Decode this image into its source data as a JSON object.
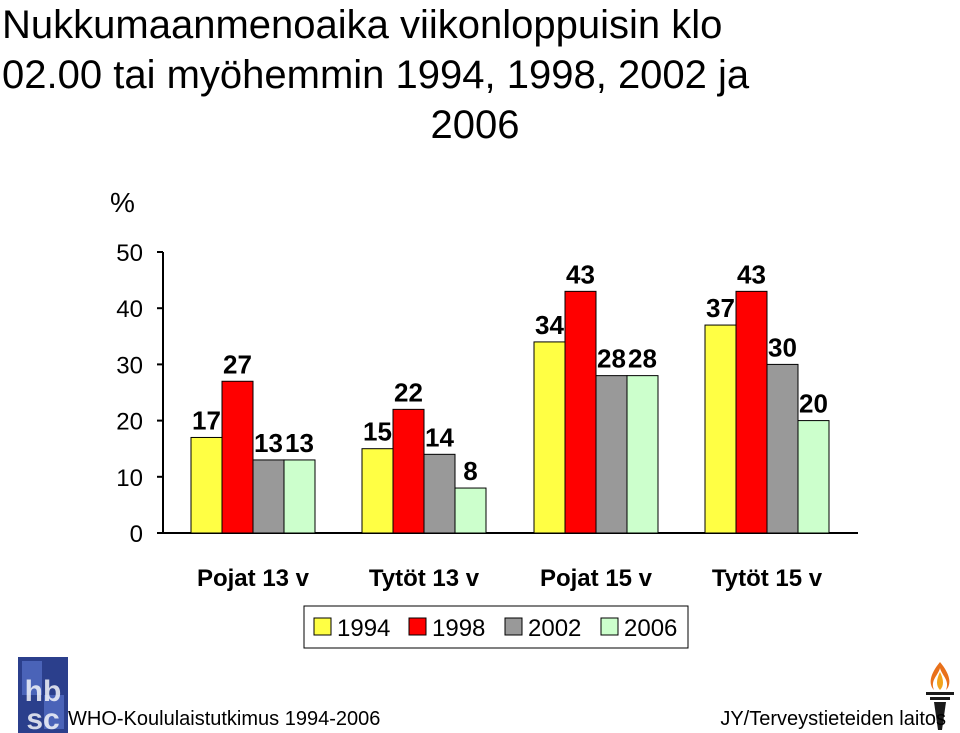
{
  "title": {
    "line1": "Nukkumaanmenoaika viikonloppuisin klo",
    "line2": "02.00 tai myöhemmin 1994, 1998, 2002 ja",
    "line3": "2006"
  },
  "chart_data": {
    "type": "bar",
    "ylabel": "%",
    "ylim": [
      0,
      50
    ],
    "yticks": [
      "0",
      "10",
      "20",
      "30",
      "40",
      "50"
    ],
    "categories": [
      "Pojat 13 v",
      "Tytöt 13 v",
      "Pojat 15 v",
      "Tytöt 15 v"
    ],
    "series": [
      {
        "name": "1994",
        "values": [
          17,
          15,
          34,
          37
        ],
        "color": "#ffff44"
      },
      {
        "name": "1998",
        "values": [
          27,
          22,
          43,
          43
        ],
        "color": "#ff0000"
      },
      {
        "name": "2002",
        "values": [
          13,
          14,
          28,
          30
        ],
        "color": "#999999"
      },
      {
        "name": "2006",
        "values": [
          13,
          8,
          28,
          20
        ],
        "color": "#ccffcc"
      }
    ],
    "data_labels": [
      "17",
      "27",
      "13",
      "13",
      "15",
      "22",
      "14",
      "8",
      "34",
      "43",
      "28",
      "28",
      "37",
      "43",
      "30",
      "20"
    ],
    "legend_position": "bottom",
    "grid": false
  },
  "footer": {
    "left_text": "WHO-Koululaistutkimus 1994-2006",
    "right_text": "JY/Terveystieteiden laitos",
    "logo_left_text": "hbsc"
  }
}
